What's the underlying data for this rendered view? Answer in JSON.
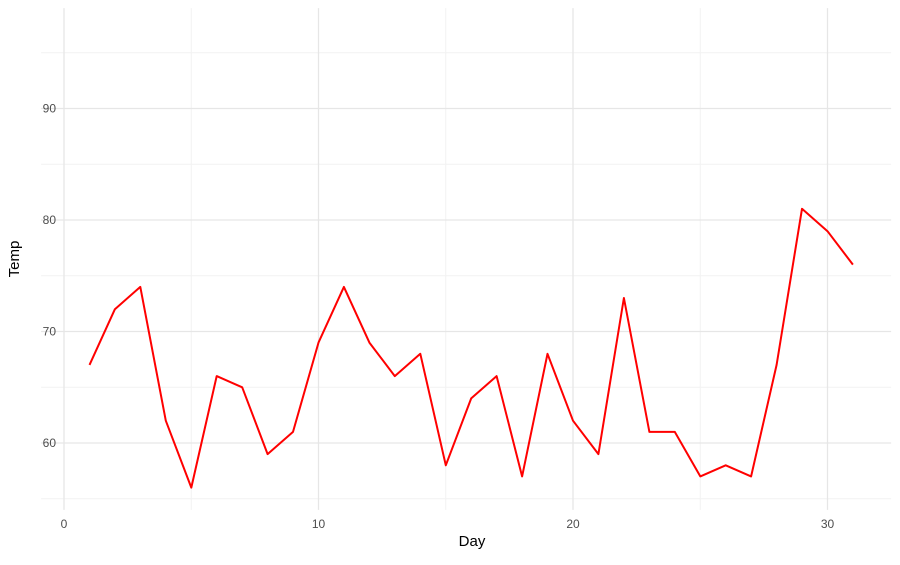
{
  "chart_data": {
    "type": "line",
    "title": "",
    "xlabel": "Day",
    "ylabel": "Temp",
    "x": [
      1,
      2,
      3,
      4,
      5,
      6,
      7,
      8,
      9,
      10,
      11,
      12,
      13,
      14,
      15,
      16,
      17,
      18,
      19,
      20,
      21,
      22,
      23,
      24,
      25,
      26,
      27,
      28,
      29,
      30,
      31
    ],
    "series": [
      {
        "values": [
          67,
          72,
          74,
          62,
          56,
          66,
          65,
          59,
          61,
          69,
          74,
          69,
          66,
          68,
          58,
          64,
          66,
          57,
          68,
          62,
          59,
          73,
          61,
          61,
          57,
          58,
          57,
          67,
          81,
          79,
          76
        ],
        "color": "#ff0000"
      }
    ],
    "xticks": [
      0,
      10,
      20,
      30
    ],
    "yticks": [
      60,
      70,
      80,
      90
    ],
    "xlim": [
      -0.9,
      32.5
    ],
    "ylim": [
      54,
      99
    ],
    "grid": true,
    "legend": "none"
  }
}
